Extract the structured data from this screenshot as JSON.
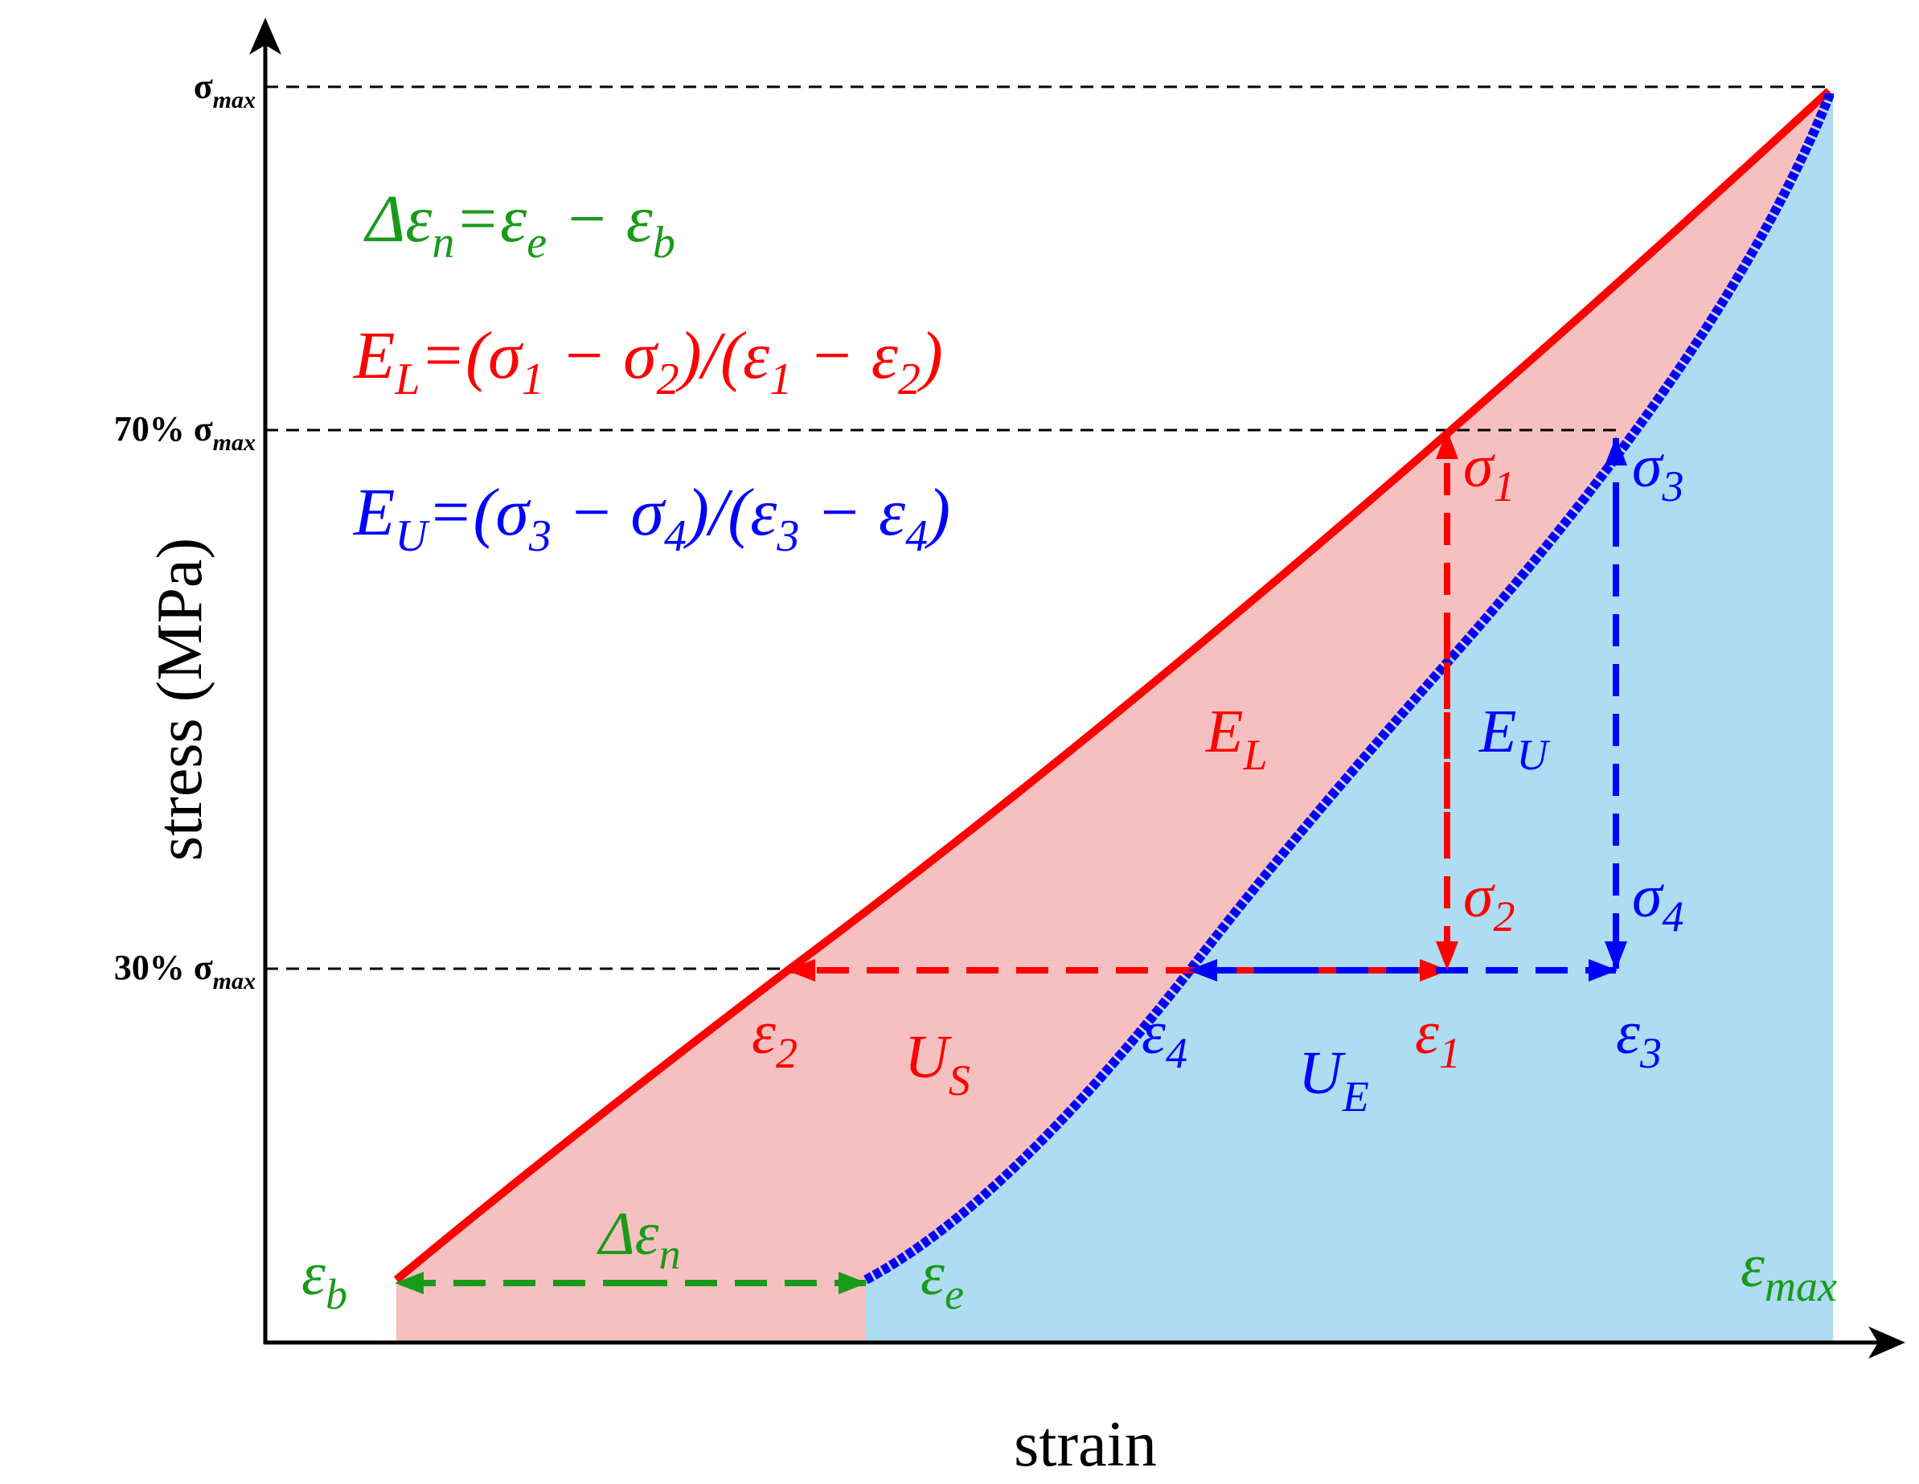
{
  "colors": {
    "loading": "#ff0000",
    "unloading": "#0000ff",
    "net": "#1a9a1a",
    "loading_fill": "#f7c0c0",
    "unloading_fill": "#aedcf2",
    "axis": "#000000"
  },
  "axes": {
    "ylabel": "stress (MPa)",
    "xlabel": "strain",
    "ticks": {
      "sigma_max": {
        "pre": "",
        "base": "σ",
        "sub": "max"
      },
      "p70": {
        "pre": "70% ",
        "base": "σ",
        "sub": "max"
      },
      "p30": {
        "pre": "30% ",
        "base": "σ",
        "sub": "max"
      }
    }
  },
  "equations": {
    "delta": {
      "a": "Δε",
      "a_sub": "n",
      "b": "=ε",
      "b_sub": "e",
      "c": " − ε",
      "c_sub": "b"
    },
    "EL": {
      "a": "E",
      "a_sub": "L",
      "b": "=(σ",
      "b_sub": "1",
      "c": " − σ",
      "c_sub": "2",
      "d": ")/(ε",
      "d_sub": "1",
      "e": " − ε",
      "e_sub": "2",
      "f": ")"
    },
    "EU": {
      "a": "E",
      "a_sub": "U",
      "b": "=(σ",
      "b_sub": "3",
      "c": " − σ",
      "c_sub": "4",
      "d": ")/(ε",
      "d_sub": "3",
      "e": " − ε",
      "e_sub": "4",
      "f": ")"
    }
  },
  "markers": {
    "sigma1": {
      "base": "σ",
      "sub": "1"
    },
    "sigma2": {
      "base": "σ",
      "sub": "2"
    },
    "sigma3": {
      "base": "σ",
      "sub": "3"
    },
    "sigma4": {
      "base": "σ",
      "sub": "4"
    },
    "eps1": {
      "base": "ε",
      "sub": "1"
    },
    "eps2": {
      "base": "ε",
      "sub": "2"
    },
    "eps3": {
      "base": "ε",
      "sub": "3"
    },
    "eps4": {
      "base": "ε",
      "sub": "4"
    },
    "EL": {
      "base": "E",
      "sub": "L"
    },
    "EU": {
      "base": "E",
      "sub": "U"
    },
    "US": {
      "base": "U",
      "sub": "S"
    },
    "UE": {
      "base": "U",
      "sub": "E"
    },
    "eps_b": {
      "base": "ε",
      "sub": "b"
    },
    "eps_e": {
      "base": "ε",
      "sub": "e"
    },
    "eps_max": {
      "base": "ε",
      "sub": "max"
    },
    "delta_n": {
      "base": "Δε",
      "sub": "n"
    }
  }
}
